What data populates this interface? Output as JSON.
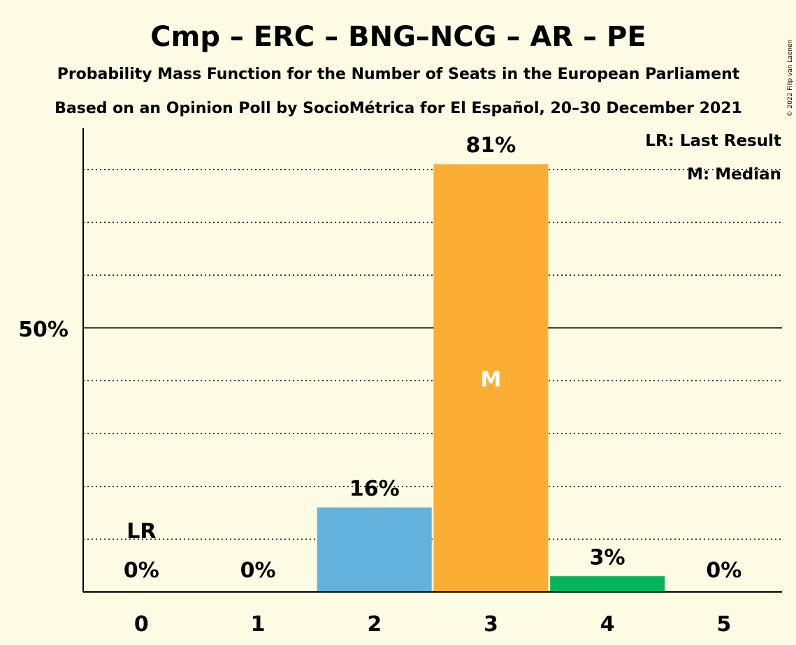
{
  "title": "Cmp – ERC – BNG–NCG – AR – PE",
  "subtitle1": "Probability Mass Function for the Number of Seats in the European Parliament",
  "subtitle2": "Based on an Opinion Poll by SocioMétrica for El Español, 20–30 December 2021",
  "copyright": "© 2022 Filip van Laenen",
  "legend": {
    "last_result": "LR: Last Result",
    "median": "M: Median"
  },
  "chart_data": {
    "type": "bar",
    "categories": [
      "0",
      "1",
      "2",
      "3",
      "4",
      "5"
    ],
    "values": [
      0,
      0,
      16,
      81,
      3,
      0
    ],
    "value_labels": [
      "0%",
      "0%",
      "16%",
      "81%",
      "3%",
      "0%"
    ],
    "colors": [
      "#62b2dd",
      "#62b2dd",
      "#62b2dd",
      "#fbae33",
      "#02b55b",
      "#62b2dd"
    ],
    "ylim": [
      0,
      88
    ],
    "y_tick_label": "50%",
    "y_tick_value": 50,
    "grid_minor_step": 10,
    "last_result_index": 0,
    "last_result_marker": "LR",
    "median_index": 3,
    "median_marker": "M"
  }
}
